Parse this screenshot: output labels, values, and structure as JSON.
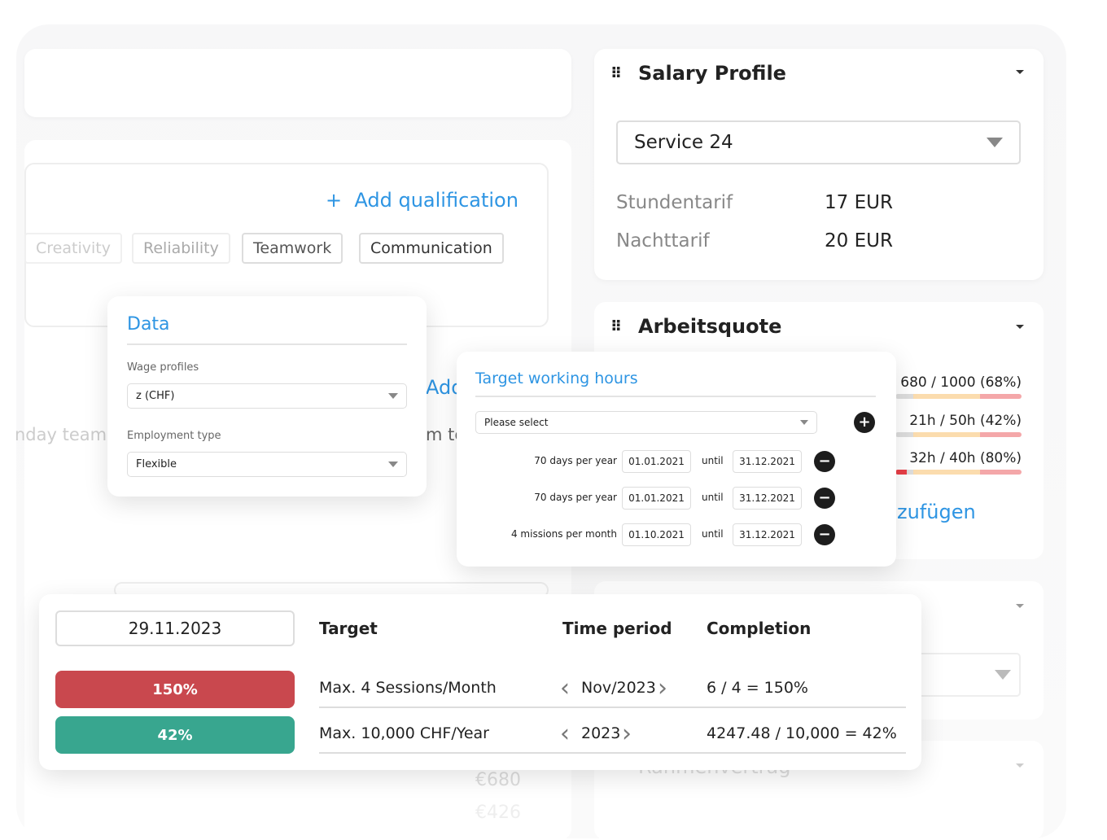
{
  "background": {
    "chips": [
      "Creativity",
      "Reliability",
      "Teamwork",
      "Communication"
    ],
    "add_qualification": "Add qualification",
    "faded_texts": {
      "team_left": "nday team",
      "add_partial": "Add",
      "team_partial": "m te",
      "euro_1": "€680",
      "euro_2": "€426",
      "contract": "Rahmenvertrag",
      "add_de": "zufügen"
    }
  },
  "salary_profile": {
    "title": "Salary Profile",
    "selected": "Service 24",
    "rates": [
      {
        "label": "Stundentarif",
        "value": "17 EUR"
      },
      {
        "label": "Nachttarif",
        "value": "20 EUR"
      }
    ]
  },
  "arbeitsquote": {
    "title": "Arbeitsquote",
    "quotas": [
      {
        "text": "680 / 1000 (68%)",
        "percent": 68
      },
      {
        "text": "21h / 50h (42%)",
        "percent": 42
      },
      {
        "text": "32h / 40h (80%)",
        "percent": 80
      }
    ]
  },
  "data_panel": {
    "title": "Data",
    "wage_label": "Wage profiles",
    "wage_value": "z (CHF)",
    "employment_label": "Employment type",
    "employment_value": "Flexible"
  },
  "target_hours": {
    "title": "Target working hours",
    "select_placeholder": "Please select",
    "until": "until",
    "rows": [
      {
        "label": "70 days per year",
        "from": "01.01.2021",
        "to": "31.12.2021"
      },
      {
        "label": "70 days per year",
        "from": "01.01.2021",
        "to": "31.12.2021"
      },
      {
        "label": "4 missions per month",
        "from": "01.10.2021",
        "to": "31.12.2021"
      }
    ]
  },
  "completion": {
    "date": "29.11.2023",
    "headers": {
      "target": "Target",
      "period": "Time period",
      "completion": "Completion"
    },
    "rows": [
      {
        "badge": "150%",
        "target": "Max. 4 Sessions/Month",
        "period": "Nov/2023",
        "completion": "6 / 4 = 150%",
        "color": "#c9484e"
      },
      {
        "badge": "42%",
        "target": "Max. 10,000 CHF/Year",
        "period": "2023",
        "completion": "4247.48 / 10,000 = 42%",
        "color": "#38a68f"
      }
    ]
  },
  "colors": {
    "accent": "#2e95e3",
    "danger": "#c9484e",
    "success": "#38a68f"
  }
}
